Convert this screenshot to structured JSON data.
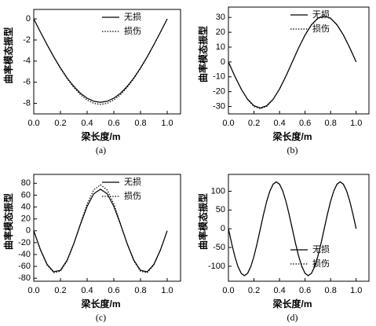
{
  "chart_data": [
    {
      "type": "line",
      "caption": "(a)",
      "xlabel": "梁长度/m",
      "ylabel": "曲率模态振型",
      "legend": "upper right",
      "xlim": [
        0,
        1.1
      ],
      "ylim": [
        -9,
        0.9
      ],
      "xticks": [
        {
          "value": 0,
          "label": "0.0"
        },
        {
          "value": 0.2,
          "label": "0.2"
        },
        {
          "value": 0.4,
          "label": "0.4"
        },
        {
          "value": 0.6,
          "label": "0.6"
        },
        {
          "value": 0.8,
          "label": "0.8"
        },
        {
          "value": 1,
          "label": "1.0"
        }
      ],
      "yticks": [
        0,
        -2,
        -4,
        -6,
        -8
      ],
      "x": [
        0,
        0.05,
        0.1,
        0.15,
        0.2,
        0.25,
        0.3,
        0.35,
        0.4,
        0.45,
        0.5,
        0.55,
        0.6,
        0.65,
        0.7,
        0.75,
        0.8,
        0.85,
        0.9,
        0.95,
        1
      ],
      "series": [
        {
          "name": "无损",
          "color": "#000000",
          "style": "solid",
          "values": [
            0,
            -1.24,
            -2.44,
            -3.59,
            -4.64,
            -5.59,
            -6.39,
            -7.04,
            -7.51,
            -7.8,
            -7.9,
            -7.8,
            -7.51,
            -7.04,
            -6.39,
            -5.59,
            -4.64,
            -3.59,
            -2.44,
            -1.24,
            0
          ]
        },
        {
          "name": "损伤",
          "color": "#000000",
          "style": "dotted",
          "values": [
            0,
            -1.25,
            -2.46,
            -3.62,
            -4.69,
            -5.66,
            -6.49,
            -7.18,
            -7.68,
            -8.0,
            -8.1,
            -8.0,
            -7.68,
            -7.18,
            -6.49,
            -5.66,
            -4.69,
            -3.62,
            -2.46,
            -1.25,
            0
          ]
        }
      ]
    },
    {
      "type": "line",
      "caption": "(b)",
      "xlabel": "梁长度/m",
      "ylabel": "曲率模态振型",
      "legend": "upper right",
      "xlim": [
        0,
        1.1
      ],
      "ylim": [
        -35,
        37
      ],
      "xticks": [
        {
          "value": 0,
          "label": "0.0"
        },
        {
          "value": 0.2,
          "label": "0.2"
        },
        {
          "value": 0.4,
          "label": "0.4"
        },
        {
          "value": 0.6,
          "label": "0.6"
        },
        {
          "value": 0.8,
          "label": "0.8"
        },
        {
          "value": 1,
          "label": "1.0"
        }
      ],
      "yticks": [
        -30,
        -20,
        -10,
        0,
        10,
        20,
        30
      ],
      "x": [
        0,
        0.05,
        0.1,
        0.15,
        0.2,
        0.25,
        0.3,
        0.35,
        0.4,
        0.45,
        0.5,
        0.55,
        0.6,
        0.65,
        0.7,
        0.75,
        0.8,
        0.85,
        0.9,
        0.95,
        1
      ],
      "series": [
        {
          "name": "无损",
          "color": "#000000",
          "style": "solid",
          "values": [
            0,
            -9.58,
            -18.22,
            -25.08,
            -29.48,
            -31,
            -29.48,
            -25.08,
            -18.22,
            -9.58,
            0,
            9.58,
            18.22,
            25.08,
            29.48,
            31,
            29.48,
            25.08,
            18.22,
            9.58,
            0
          ]
        },
        {
          "name": "损伤",
          "color": "#000000",
          "style": "dotted",
          "values": [
            0,
            -9.6,
            -18.3,
            -25.4,
            -30.0,
            -31.5,
            -29.9,
            -25.3,
            -18.3,
            -9.6,
            0,
            9.5,
            18.1,
            24.9,
            29.3,
            30.8,
            29.3,
            24.9,
            18.1,
            9.5,
            0
          ]
        }
      ]
    },
    {
      "type": "line",
      "caption": "(c)",
      "xlabel": "梁长度/m",
      "ylabel": "曲率模态振型",
      "legend": "upper right",
      "xlim": [
        0,
        1.1
      ],
      "ylim": [
        -85,
        95
      ],
      "xticks": [
        {
          "value": 0,
          "label": "0.0"
        },
        {
          "value": 0.2,
          "label": "0.2"
        },
        {
          "value": 0.4,
          "label": "0.4"
        },
        {
          "value": 0.6,
          "label": "0.6"
        },
        {
          "value": 0.8,
          "label": "0.8"
        },
        {
          "value": 1,
          "label": "1.0"
        }
      ],
      "yticks": [
        -80,
        -60,
        -40,
        -20,
        0,
        20,
        40,
        60,
        80
      ],
      "x": [
        0,
        0.05,
        0.1,
        0.15,
        0.2,
        0.25,
        0.3,
        0.35,
        0.4,
        0.45,
        0.5,
        0.55,
        0.6,
        0.65,
        0.7,
        0.75,
        0.8,
        0.85,
        0.9,
        0.95,
        1
      ],
      "series": [
        {
          "name": "无损",
          "color": "#000000",
          "style": "solid",
          "values": [
            0,
            -31.78,
            -56.63,
            -69.14,
            -66.58,
            -49.5,
            -21.63,
            10.95,
            41.15,
            62.37,
            70,
            62.37,
            41.15,
            10.95,
            -21.63,
            -49.5,
            -66.58,
            -69.14,
            -56.63,
            -31.78,
            0
          ]
        },
        {
          "name": "损伤",
          "color": "#000000",
          "style": "dotted",
          "values": [
            0,
            -32.4,
            -57.8,
            -70.6,
            -68.2,
            -50.9,
            -22.2,
            12.0,
            45.3,
            68.9,
            77.5,
            68.9,
            45.3,
            12.0,
            -22.2,
            -50.9,
            -68.2,
            -70.6,
            -57.8,
            -32.4,
            0
          ]
        }
      ]
    },
    {
      "type": "line",
      "caption": "(d)",
      "xlabel": "梁长度/m",
      "ylabel": "曲率模态振型",
      "legend": "lower right",
      "xlim": [
        0,
        1.1
      ],
      "ylim": [
        -140,
        145
      ],
      "xticks": [
        {
          "value": 0,
          "label": "0.0"
        },
        {
          "value": 0.2,
          "label": "0.2"
        },
        {
          "value": 0.4,
          "label": "0.4"
        },
        {
          "value": 0.6,
          "label": "0.6"
        },
        {
          "value": 0.8,
          "label": "0.8"
        },
        {
          "value": 1,
          "label": "1.0"
        }
      ],
      "yticks": [
        -100,
        -50,
        0,
        50,
        100
      ],
      "x": [
        0,
        0.025,
        0.05,
        0.075,
        0.1,
        0.125,
        0.15,
        0.175,
        0.2,
        0.225,
        0.25,
        0.275,
        0.3,
        0.325,
        0.35,
        0.375,
        0.4,
        0.425,
        0.45,
        0.475,
        0.5,
        0.525,
        0.55,
        0.575,
        0.6,
        0.625,
        0.65,
        0.675,
        0.7,
        0.725,
        0.75,
        0.775,
        0.8,
        0.825,
        0.85,
        0.875,
        0.9,
        0.925,
        0.95,
        0.975,
        1
      ],
      "series": [
        {
          "name": "无损",
          "color": "#000000",
          "style": "solid",
          "values": [
            0,
            -38.6,
            -73.5,
            -101.1,
            -118.9,
            -125,
            -118.9,
            -101.1,
            -73.5,
            -38.6,
            0,
            38.6,
            73.5,
            101.1,
            118.9,
            125,
            118.9,
            101.1,
            73.5,
            38.6,
            0,
            -38.6,
            -73.5,
            -101.1,
            -118.9,
            -125,
            -118.9,
            -101.1,
            -73.5,
            -38.6,
            0,
            38.6,
            73.5,
            101.1,
            118.9,
            125,
            118.9,
            101.1,
            73.5,
            38.6,
            0
          ]
        },
        {
          "name": "损伤",
          "color": "#000000",
          "style": "dotted",
          "values": [
            0,
            -38.7,
            -73.7,
            -101.4,
            -119.3,
            -125.4,
            -119.2,
            -101.3,
            -73.6,
            -38.6,
            0,
            38.6,
            73.5,
            101.1,
            118.9,
            125,
            118.9,
            101.1,
            73.5,
            38.6,
            0,
            -38.6,
            -73.5,
            -101.1,
            -118.9,
            -125,
            -118.9,
            -101.1,
            -73.5,
            -38.6,
            0,
            38.6,
            73.5,
            101.1,
            118.9,
            125,
            118.9,
            101.1,
            73.5,
            38.6,
            0
          ]
        }
      ]
    }
  ]
}
